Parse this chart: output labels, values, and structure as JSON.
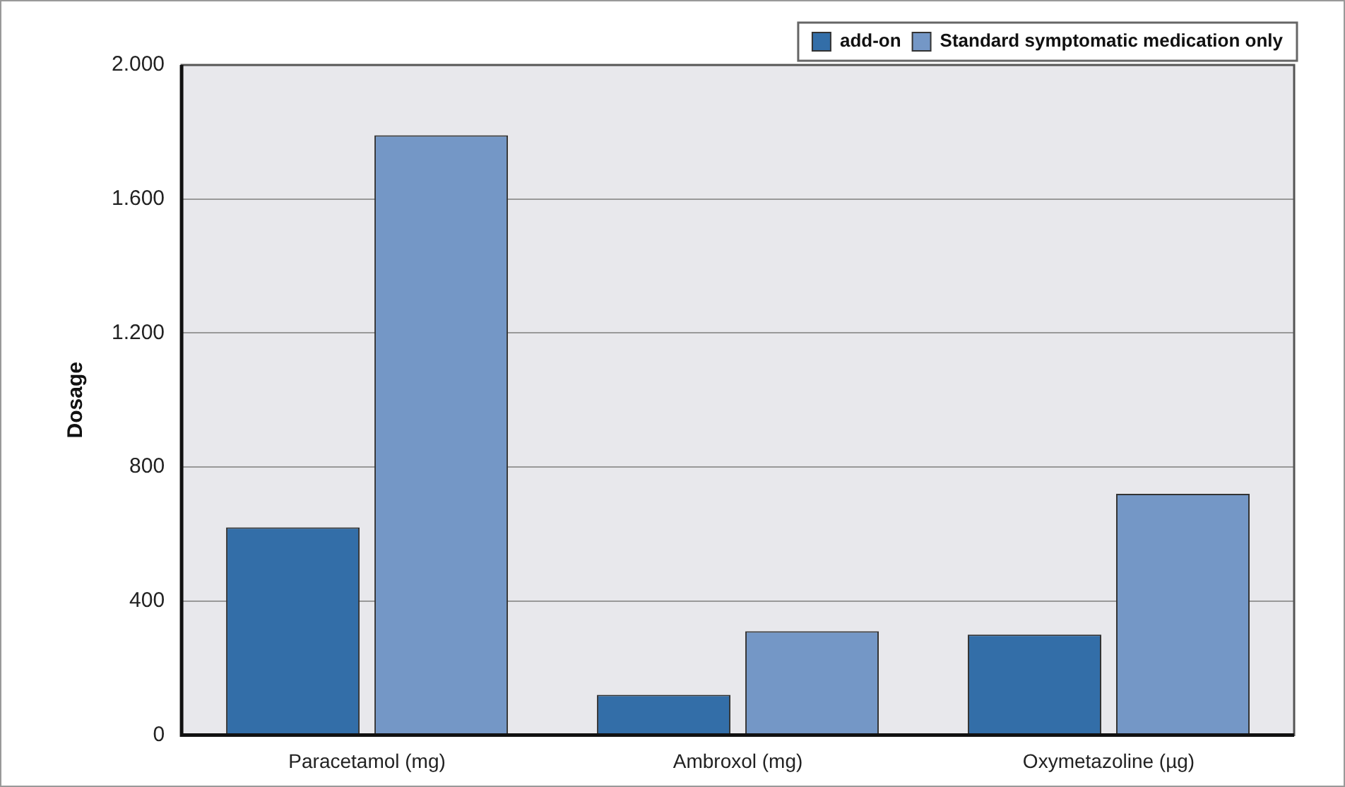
{
  "chart_data": {
    "type": "bar",
    "ylabel": "Dosage",
    "categories": [
      "Paracetamol (mg)",
      "Ambroxol (mg)",
      "Oxymetazoline (µg)"
    ],
    "series": [
      {
        "name": "add-on",
        "color": "#336ea8",
        "values": [
          620,
          120,
          300
        ]
      },
      {
        "name": "Standard symptomatic medication only",
        "color": "#7497c6",
        "values": [
          1790,
          310,
          720
        ]
      }
    ],
    "ylim": [
      0,
      2000
    ],
    "yticks": [
      0,
      400,
      800,
      {
        "value": 1200,
        "label": "1.200"
      },
      {
        "value": 1600,
        "label": "1.600"
      },
      {
        "value": 2000,
        "label": "2.000"
      }
    ],
    "grid": "y",
    "legend": "top right"
  }
}
